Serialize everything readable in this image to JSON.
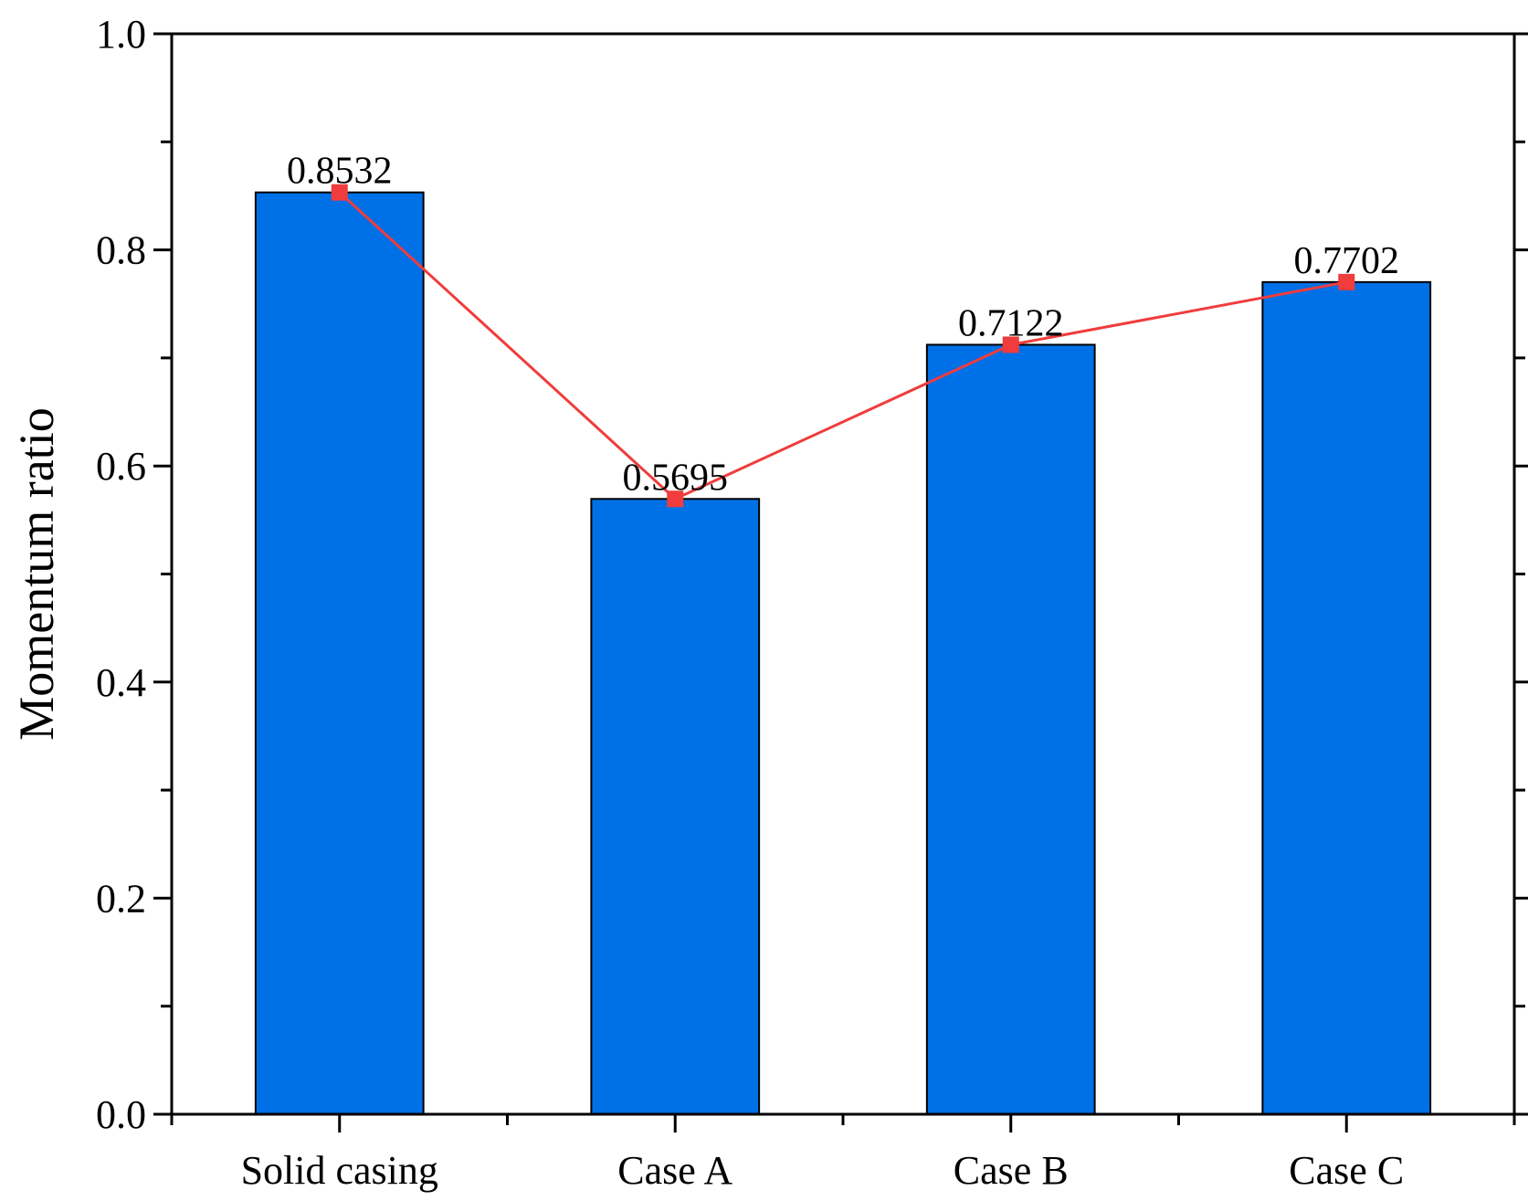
{
  "chart_data": {
    "type": "bar",
    "title": "",
    "xlabel": "",
    "ylabel": "Momentum ratio",
    "ylim": [
      0,
      1.0
    ],
    "yticks": [
      "0.0",
      "0.2",
      "0.4",
      "0.6",
      "0.8",
      "1.0"
    ],
    "categories": [
      "Solid casing",
      "Case A",
      "Case B",
      "Case C"
    ],
    "series": [
      {
        "name": "bars",
        "kind": "bar",
        "values": [
          0.8532,
          0.5695,
          0.7122,
          0.7702
        ],
        "color": "#0070e6"
      },
      {
        "name": "line",
        "kind": "line",
        "marker": "square",
        "values": [
          0.8532,
          0.5695,
          0.7122,
          0.7702
        ],
        "color": "#f03c3c"
      }
    ],
    "data_labels": [
      "0.8532",
      "0.5695",
      "0.7122",
      "0.7702"
    ],
    "grid": false,
    "legend": "none"
  }
}
